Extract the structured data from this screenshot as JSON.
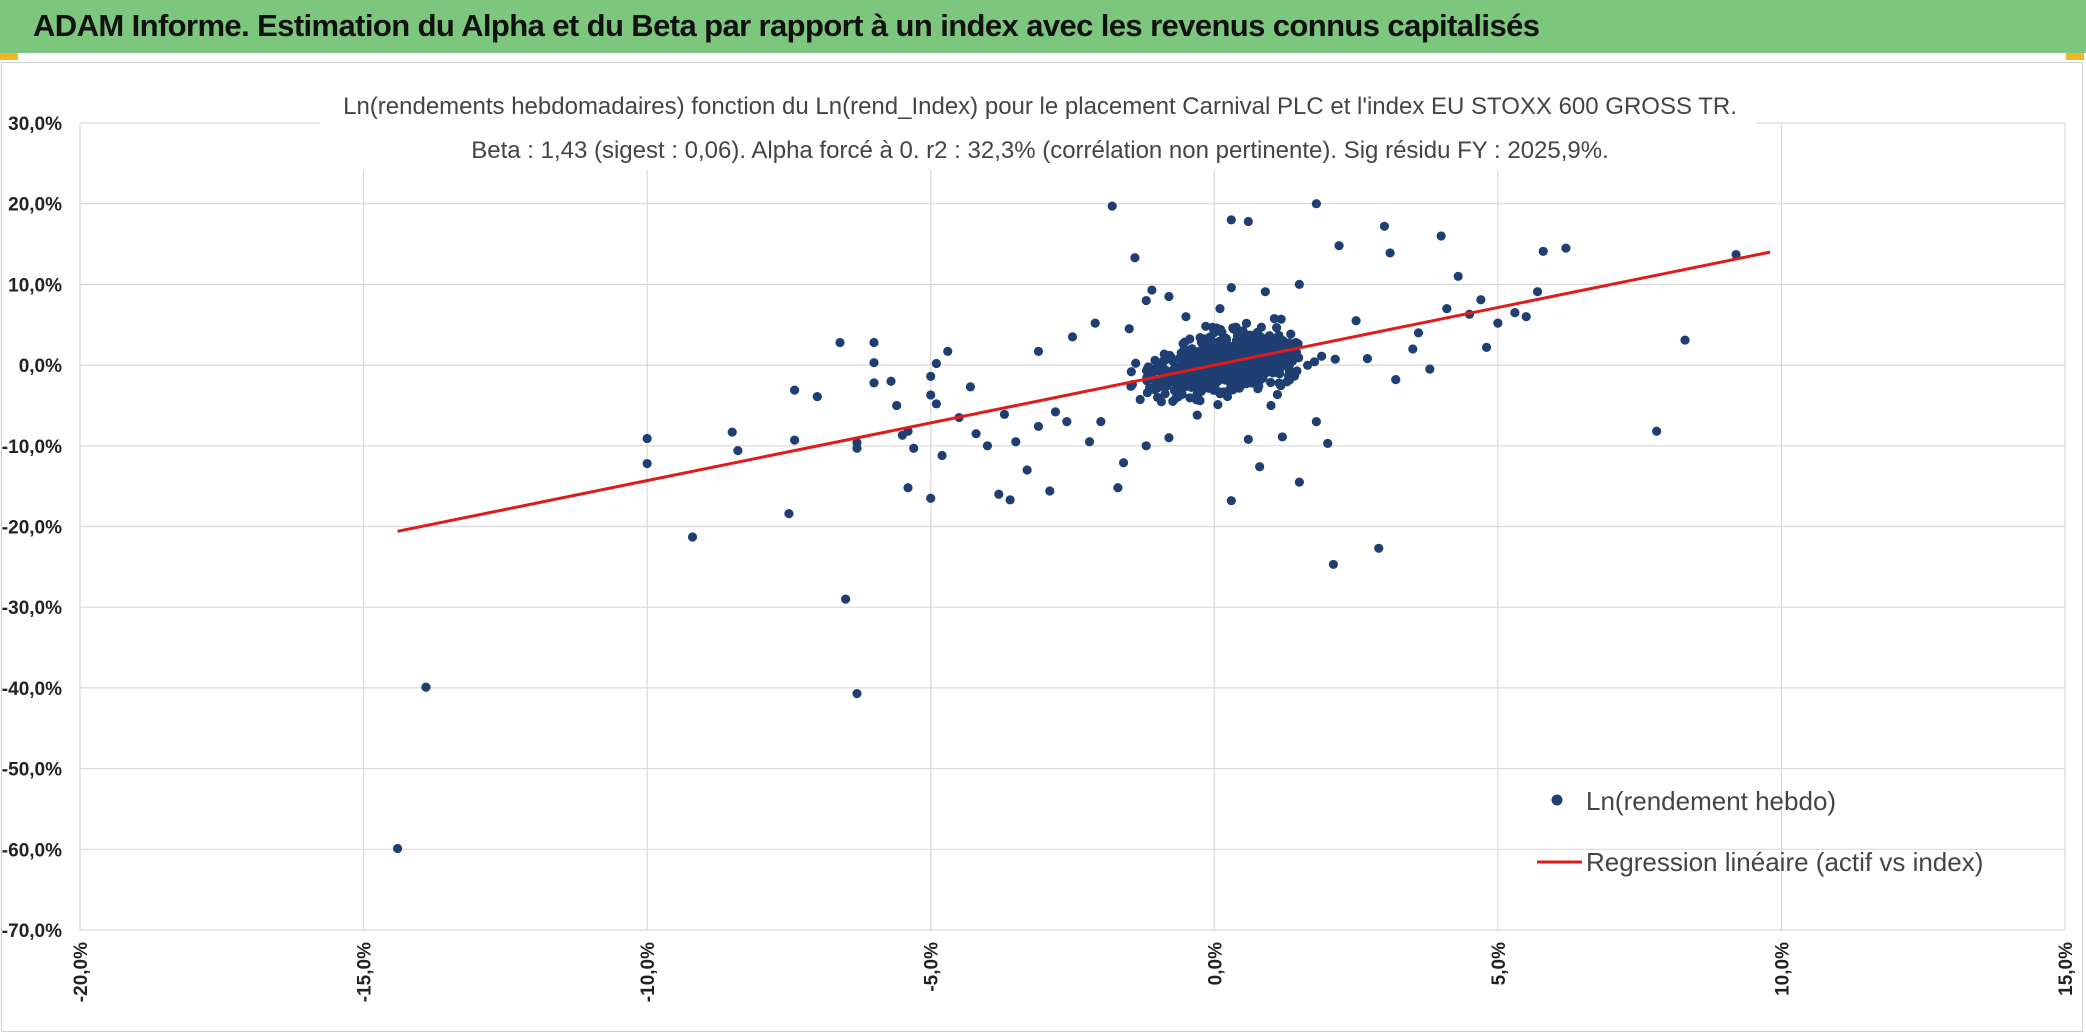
{
  "banner": {
    "title": "ADAM Informe. Estimation du Alpha et du Beta par rapport à un index avec les revenus connus capitalisés",
    "background": "#7dc67d",
    "corner_color": "#f2b824"
  },
  "chart_data": {
    "type": "scatter",
    "title": "Ln(rendements hebdomadaires) fonction du Ln(rend_Index) pour le placement Carnival PLC et l'index EU STOXX 600 GROSS TR.",
    "subtitle": "Beta : 1,43 (sigest : 0,06). Alpha forcé à 0. r2 : 32,3% (corrélation non pertinente). Sig résidu FY : 2025,9%.",
    "xlabel": "",
    "ylabel": "",
    "xlim": [
      -0.2,
      0.15
    ],
    "ylim": [
      -0.7,
      0.3
    ],
    "x_ticks": [
      -0.2,
      -0.15,
      -0.1,
      -0.05,
      0.0,
      0.05,
      0.1,
      0.15
    ],
    "x_tick_labels": [
      "-20,0%",
      "-15,0%",
      "-10,0%",
      "-5,0%",
      "0,0%",
      "5,0%",
      "10,0%",
      "15,0%"
    ],
    "y_ticks": [
      0.3,
      0.2,
      0.1,
      0.0,
      -0.1,
      -0.2,
      -0.3,
      -0.4,
      -0.5,
      -0.6,
      -0.7
    ],
    "y_tick_labels": [
      "30,0%",
      "20,0%",
      "10,0%",
      "0,0%",
      "-10,0%",
      "-20,0%",
      "-30,0%",
      "-40,0%",
      "-50,0%",
      "-60,0%",
      "-70,0%"
    ],
    "grid": true,
    "legend_position": "bottom-right",
    "series": [
      {
        "name": "Ln(rendement hebdo)",
        "kind": "scatter",
        "color": "#1f3f73",
        "points": [
          [
            -0.144,
            -0.599
          ],
          [
            -0.139,
            -0.399
          ],
          [
            -0.1,
            -0.091
          ],
          [
            -0.1,
            -0.122
          ],
          [
            -0.092,
            -0.213
          ],
          [
            -0.085,
            -0.083
          ],
          [
            -0.084,
            -0.106
          ],
          [
            -0.075,
            -0.184
          ],
          [
            -0.074,
            -0.031
          ],
          [
            -0.074,
            -0.093
          ],
          [
            -0.07,
            -0.039
          ],
          [
            -0.066,
            0.028
          ],
          [
            -0.065,
            -0.29
          ],
          [
            -0.063,
            -0.096
          ],
          [
            -0.063,
            -0.103
          ],
          [
            -0.063,
            -0.407
          ],
          [
            -0.06,
            0.028
          ],
          [
            -0.06,
            0.003
          ],
          [
            -0.06,
            -0.022
          ],
          [
            -0.057,
            -0.02
          ],
          [
            -0.056,
            -0.05
          ],
          [
            -0.055,
            -0.087
          ],
          [
            -0.054,
            -0.152
          ],
          [
            -0.054,
            -0.082
          ],
          [
            -0.053,
            -0.103
          ],
          [
            -0.05,
            -0.037
          ],
          [
            -0.05,
            -0.014
          ],
          [
            -0.049,
            -0.048
          ],
          [
            -0.05,
            -0.165
          ],
          [
            -0.047,
            0.017
          ],
          [
            -0.049,
            0.002
          ],
          [
            -0.048,
            -0.112
          ],
          [
            -0.045,
            -0.065
          ],
          [
            -0.043,
            -0.027
          ],
          [
            -0.042,
            -0.085
          ],
          [
            -0.04,
            -0.1
          ],
          [
            -0.038,
            -0.16
          ],
          [
            -0.037,
            -0.061
          ],
          [
            -0.036,
            -0.167
          ],
          [
            -0.035,
            -0.095
          ],
          [
            -0.033,
            -0.13
          ],
          [
            -0.031,
            0.017
          ],
          [
            -0.029,
            -0.156
          ],
          [
            -0.018,
            0.197
          ],
          [
            -0.014,
            0.133
          ],
          [
            -0.021,
            0.052
          ],
          [
            -0.016,
            -0.121
          ],
          [
            -0.017,
            -0.152
          ],
          [
            0.003,
            0.18
          ],
          [
            0.006,
            0.178
          ],
          [
            0.008,
            -0.126
          ],
          [
            0.003,
            -0.168
          ],
          [
            0.018,
            0.2
          ],
          [
            0.022,
            0.148
          ],
          [
            0.015,
            -0.145
          ],
          [
            0.02,
            -0.097
          ],
          [
            0.021,
            -0.247
          ],
          [
            0.029,
            -0.227
          ],
          [
            0.03,
            0.172
          ],
          [
            0.031,
            0.139
          ],
          [
            0.04,
            0.16
          ],
          [
            0.041,
            0.07
          ],
          [
            0.043,
            0.11
          ],
          [
            0.047,
            0.081
          ],
          [
            0.05,
            0.052
          ],
          [
            0.053,
            0.065
          ],
          [
            0.057,
            0.091
          ],
          [
            0.058,
            0.141
          ],
          [
            0.062,
            0.145
          ],
          [
            0.092,
            0.137
          ],
          [
            0.083,
            0.031
          ],
          [
            0.078,
            -0.082
          ],
          [
            0.055,
            0.06
          ],
          [
            0.048,
            0.022
          ],
          [
            0.045,
            0.063
          ],
          [
            0.036,
            0.04
          ],
          [
            0.032,
            -0.018
          ],
          [
            0.027,
            0.008
          ],
          [
            -0.011,
            0.093
          ],
          [
            -0.012,
            0.08
          ],
          [
            -0.008,
            0.085
          ],
          [
            0.003,
            0.096
          ],
          [
            0.009,
            0.091
          ],
          [
            0.015,
            0.1
          ],
          [
            -0.02,
            -0.07
          ],
          [
            -0.022,
            -0.095
          ],
          [
            -0.012,
            -0.1
          ],
          [
            -0.008,
            -0.09
          ],
          [
            0.006,
            -0.092
          ],
          [
            0.012,
            -0.089
          ],
          [
            0.018,
            -0.07
          ],
          [
            -0.028,
            -0.058
          ],
          [
            -0.026,
            -0.07
          ],
          [
            -0.031,
            -0.076
          ],
          [
            -0.003,
            -0.062
          ],
          [
            0.001,
            0.07
          ],
          [
            -0.005,
            0.06
          ],
          [
            0.025,
            0.055
          ],
          [
            0.035,
            0.02
          ],
          [
            0.038,
            -0.005
          ],
          [
            -0.025,
            0.035
          ],
          [
            -0.015,
            0.045
          ],
          [
            -0.01,
            -0.04
          ],
          [
            0.01,
            -0.05
          ]
        ]
      },
      {
        "name": "Regression linéaire (actif vs index)",
        "kind": "line",
        "color": "#e01b1b",
        "points": [
          [
            -0.144,
            -0.206
          ],
          [
            0.098,
            0.14
          ]
        ]
      }
    ]
  }
}
